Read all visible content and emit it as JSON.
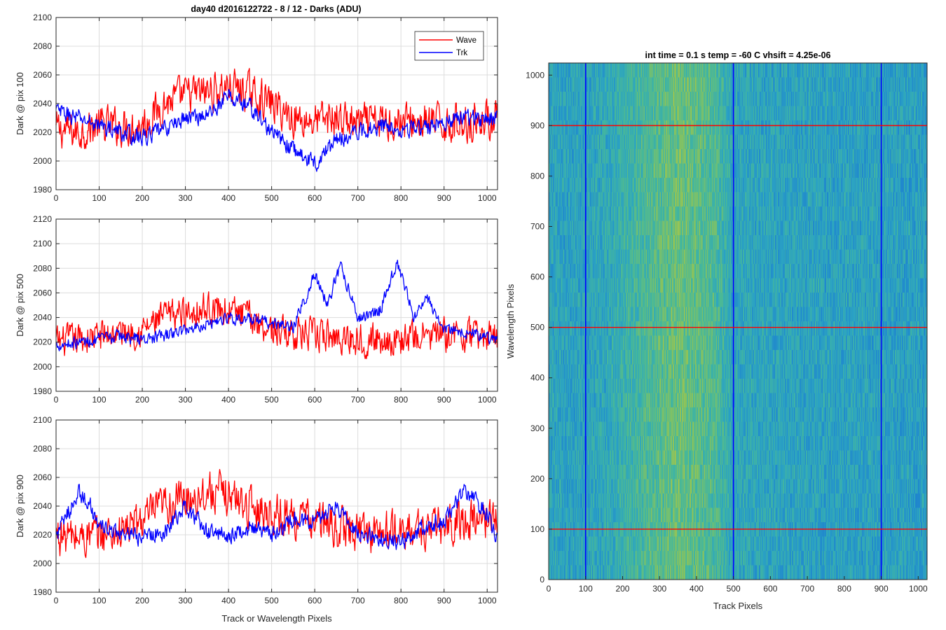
{
  "figure": {
    "left_title": "day40 d2016122722 - 8 / 12 - Darks (ADU)",
    "shared_xlabel": "Track or Wavelength Pixels",
    "legend": [
      {
        "label": "Wave",
        "color": "#ff0000"
      },
      {
        "label": "Trk",
        "color": "#0000ff"
      }
    ]
  },
  "chart_data": [
    {
      "type": "line",
      "ylabel": "Dark @ pix 100",
      "xlim": [
        0,
        1024
      ],
      "ylim": [
        1980,
        2100
      ],
      "xticks": [
        0,
        100,
        200,
        300,
        400,
        500,
        600,
        700,
        800,
        900,
        1000
      ],
      "yticks": [
        1980,
        2000,
        2020,
        2040,
        2060,
        2080,
        2100
      ],
      "grid": true,
      "series": [
        {
          "name": "Wave",
          "color": "#ff0000",
          "x": [
            0,
            50,
            100,
            150,
            200,
            250,
            300,
            350,
            400,
            450,
            500,
            550,
            600,
            650,
            700,
            750,
            800,
            850,
            900,
            950,
            1024
          ],
          "y": [
            2022,
            2020,
            2025,
            2024,
            2025,
            2040,
            2046,
            2048,
            2052,
            2048,
            2040,
            2030,
            2028,
            2030,
            2026,
            2027,
            2028,
            2027,
            2026,
            2027,
            2030
          ],
          "noise": 13
        },
        {
          "name": "Trk",
          "color": "#0000ff",
          "x": [
            0,
            50,
            100,
            150,
            200,
            250,
            300,
            350,
            400,
            450,
            500,
            550,
            600,
            650,
            700,
            750,
            800,
            850,
            900,
            950,
            1024
          ],
          "y": [
            2035,
            2030,
            2025,
            2020,
            2016,
            2022,
            2030,
            2032,
            2045,
            2038,
            2020,
            2008,
            1998,
            2015,
            2020,
            2025,
            2023,
            2022,
            2028,
            2030,
            2030
          ],
          "noise": 6
        }
      ]
    },
    {
      "type": "line",
      "ylabel": "Dark @ pix 500",
      "xlim": [
        0,
        1024
      ],
      "ylim": [
        1980,
        2120
      ],
      "xticks": [
        0,
        100,
        200,
        300,
        400,
        500,
        600,
        700,
        800,
        900,
        1000
      ],
      "yticks": [
        1980,
        2000,
        2020,
        2040,
        2060,
        2080,
        2100,
        2120
      ],
      "grid": true,
      "series": [
        {
          "name": "Wave",
          "color": "#ff0000",
          "x": [
            0,
            50,
            100,
            150,
            200,
            250,
            300,
            350,
            400,
            450,
            500,
            550,
            600,
            650,
            700,
            750,
            800,
            850,
            900,
            950,
            1024
          ],
          "y": [
            2020,
            2022,
            2025,
            2028,
            2030,
            2040,
            2045,
            2048,
            2046,
            2040,
            2030,
            2028,
            2025,
            2024,
            2023,
            2022,
            2022,
            2025,
            2026,
            2025,
            2025
          ],
          "noise": 13
        },
        {
          "name": "Trk",
          "color": "#0000ff",
          "x": [
            0,
            50,
            100,
            150,
            200,
            250,
            300,
            350,
            400,
            450,
            500,
            550,
            600,
            630,
            660,
            700,
            750,
            790,
            830,
            860,
            900,
            950,
            1024
          ],
          "y": [
            2018,
            2020,
            2022,
            2025,
            2022,
            2025,
            2030,
            2035,
            2040,
            2038,
            2035,
            2032,
            2075,
            2050,
            2082,
            2040,
            2045,
            2085,
            2040,
            2055,
            2032,
            2028,
            2022
          ],
          "noise": 5
        }
      ]
    },
    {
      "type": "line",
      "ylabel": "Dark @ pix 900",
      "xlim": [
        0,
        1024
      ],
      "ylim": [
        1980,
        2100
      ],
      "xticks": [
        0,
        100,
        200,
        300,
        400,
        500,
        600,
        700,
        800,
        900,
        1000
      ],
      "yticks": [
        1980,
        2000,
        2020,
        2040,
        2060,
        2080,
        2100
      ],
      "grid": true,
      "series": [
        {
          "name": "Wave",
          "color": "#ff0000",
          "x": [
            0,
            50,
            100,
            150,
            200,
            250,
            300,
            350,
            400,
            450,
            500,
            550,
            600,
            650,
            700,
            750,
            800,
            850,
            900,
            950,
            1024
          ],
          "y": [
            2020,
            2018,
            2020,
            2022,
            2030,
            2040,
            2045,
            2050,
            2048,
            2040,
            2035,
            2032,
            2030,
            2025,
            2023,
            2022,
            2022,
            2024,
            2025,
            2030,
            2032
          ],
          "noise": 14
        },
        {
          "name": "Trk",
          "color": "#0000ff",
          "x": [
            0,
            20,
            50,
            80,
            100,
            150,
            200,
            250,
            300,
            350,
            400,
            450,
            500,
            550,
            600,
            650,
            700,
            750,
            800,
            850,
            900,
            950,
            1000,
            1024
          ],
          "y": [
            2020,
            2030,
            2050,
            2040,
            2025,
            2020,
            2018,
            2022,
            2040,
            2022,
            2020,
            2025,
            2020,
            2030,
            2030,
            2040,
            2022,
            2018,
            2015,
            2025,
            2030,
            2050,
            2035,
            2015
          ],
          "noise": 6
        }
      ]
    },
    {
      "type": "heatmap",
      "title": "int time = 0.1 s   temp = -60 C   vhsift = 4.25e-06",
      "xlabel": "Track Pixels",
      "ylabel": "Wavelength Pixels",
      "xlim": [
        0,
        1024
      ],
      "ylim": [
        0,
        1024
      ],
      "xticks": [
        0,
        100,
        200,
        300,
        400,
        500,
        600,
        700,
        800,
        900,
        1000
      ],
      "yticks": [
        0,
        100,
        200,
        300,
        400,
        500,
        600,
        700,
        800,
        900,
        1000
      ],
      "colormap": [
        "#1a4fb8",
        "#1c7fd0",
        "#2ba3c3",
        "#46b89a",
        "#8cc35a",
        "#d8c83a"
      ],
      "column_profile": {
        "x": [
          0,
          50,
          100,
          150,
          200,
          250,
          300,
          350,
          400,
          450,
          500,
          550,
          600,
          650,
          700,
          750,
          800,
          850,
          900,
          950,
          1024
        ],
        "level": [
          0.42,
          0.4,
          0.42,
          0.44,
          0.5,
          0.58,
          0.64,
          0.7,
          0.66,
          0.6,
          0.44,
          0.42,
          0.41,
          0.41,
          0.41,
          0.4,
          0.4,
          0.4,
          0.4,
          0.39,
          0.38
        ]
      },
      "vertical_lines": {
        "x": [
          100,
          500,
          900
        ],
        "color": "#0000ff"
      },
      "horizontal_lines": {
        "y": [
          100,
          500,
          900
        ],
        "color": "#ff0000"
      }
    }
  ]
}
